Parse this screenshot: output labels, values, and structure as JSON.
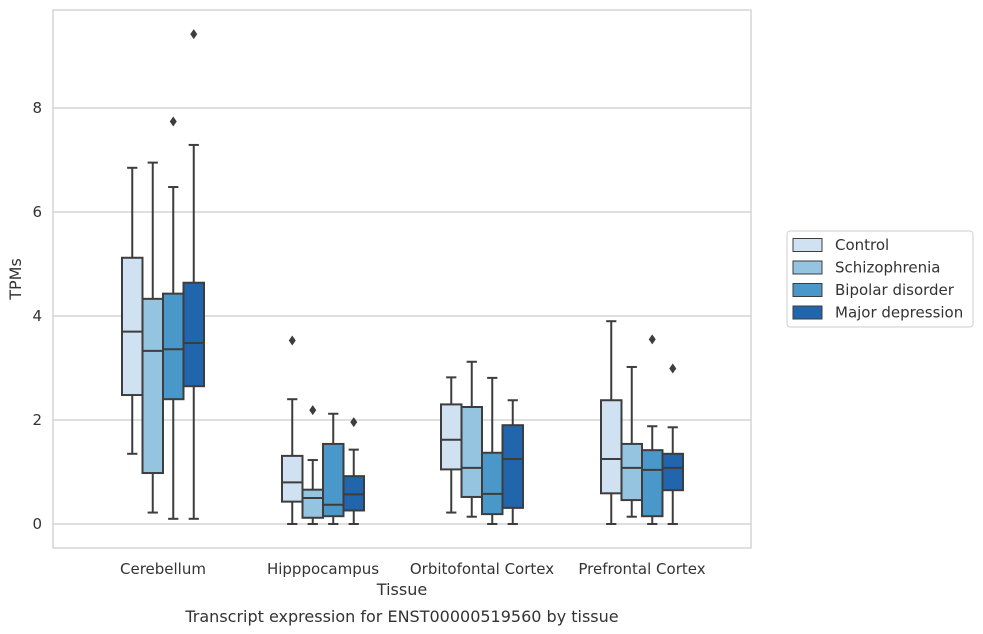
{
  "chart_data": {
    "type": "boxplot",
    "title": "Transcript expression for ENST00000519560 by tissue",
    "xlabel": "Tissue",
    "ylabel": "TPMs",
    "ylim": [
      -0.45,
      9.9
    ],
    "yticks": [
      0,
      2,
      4,
      6,
      8
    ],
    "grid": "horizontal",
    "legend_position": "right",
    "categories": [
      "Cerebellum",
      "Hipppocampus",
      "Orbitofontal Cortex",
      "Prefrontal Cortex"
    ],
    "series": [
      {
        "name": "Control",
        "color": "#d0e1f2",
        "boxes": [
          {
            "whisker_low": 1.35,
            "q1": 2.48,
            "median": 3.7,
            "q3": 5.12,
            "whisker_high": 6.85,
            "outliers": []
          },
          {
            "whisker_low": 0.0,
            "q1": 0.43,
            "median": 0.8,
            "q3": 1.31,
            "whisker_high": 2.4,
            "outliers": [
              3.53
            ]
          },
          {
            "whisker_low": 0.22,
            "q1": 1.05,
            "median": 1.62,
            "q3": 2.3,
            "whisker_high": 2.82,
            "outliers": []
          },
          {
            "whisker_low": 0.0,
            "q1": 0.59,
            "median": 1.25,
            "q3": 2.38,
            "whisker_high": 3.9,
            "outliers": []
          }
        ]
      },
      {
        "name": "Schizophrenia",
        "color": "#94c4df",
        "boxes": [
          {
            "whisker_low": 0.22,
            "q1": 0.98,
            "median": 3.33,
            "q3": 4.33,
            "whisker_high": 6.95,
            "outliers": []
          },
          {
            "whisker_low": 0.0,
            "q1": 0.12,
            "median": 0.5,
            "q3": 0.66,
            "whisker_high": 1.23,
            "outliers": [
              2.19
            ]
          },
          {
            "whisker_low": 0.14,
            "q1": 0.52,
            "median": 1.08,
            "q3": 2.25,
            "whisker_high": 3.12,
            "outliers": []
          },
          {
            "whisker_low": 0.14,
            "q1": 0.46,
            "median": 1.08,
            "q3": 1.54,
            "whisker_high": 3.02,
            "outliers": []
          }
        ]
      },
      {
        "name": "Bipolar disorder",
        "color": "#4a98c9",
        "boxes": [
          {
            "whisker_low": 0.1,
            "q1": 2.4,
            "median": 3.36,
            "q3": 4.43,
            "whisker_high": 6.48,
            "outliers": [
              7.74
            ]
          },
          {
            "whisker_low": 0.0,
            "q1": 0.15,
            "median": 0.37,
            "q3": 1.54,
            "whisker_high": 2.12,
            "outliers": []
          },
          {
            "whisker_low": 0.0,
            "q1": 0.19,
            "median": 0.58,
            "q3": 1.37,
            "whisker_high": 2.81,
            "outliers": []
          },
          {
            "whisker_low": 0.0,
            "q1": 0.15,
            "median": 1.04,
            "q3": 1.42,
            "whisker_high": 1.88,
            "outliers": [
              3.55
            ]
          }
        ]
      },
      {
        "name": "Major depression",
        "color": "#2166ac",
        "boxes": [
          {
            "whisker_low": 0.1,
            "q1": 2.65,
            "median": 3.48,
            "q3": 4.64,
            "whisker_high": 7.29,
            "outliers": [
              9.42
            ]
          },
          {
            "whisker_low": 0.0,
            "q1": 0.26,
            "median": 0.57,
            "q3": 0.92,
            "whisker_high": 1.43,
            "outliers": [
              1.96
            ]
          },
          {
            "whisker_low": 0.0,
            "q1": 0.31,
            "median": 1.25,
            "q3": 1.9,
            "whisker_high": 2.38,
            "outliers": []
          },
          {
            "whisker_low": 0.0,
            "q1": 0.65,
            "median": 1.08,
            "q3": 1.35,
            "whisker_high": 1.86,
            "outliers": [
              2.99
            ]
          }
        ]
      }
    ]
  }
}
